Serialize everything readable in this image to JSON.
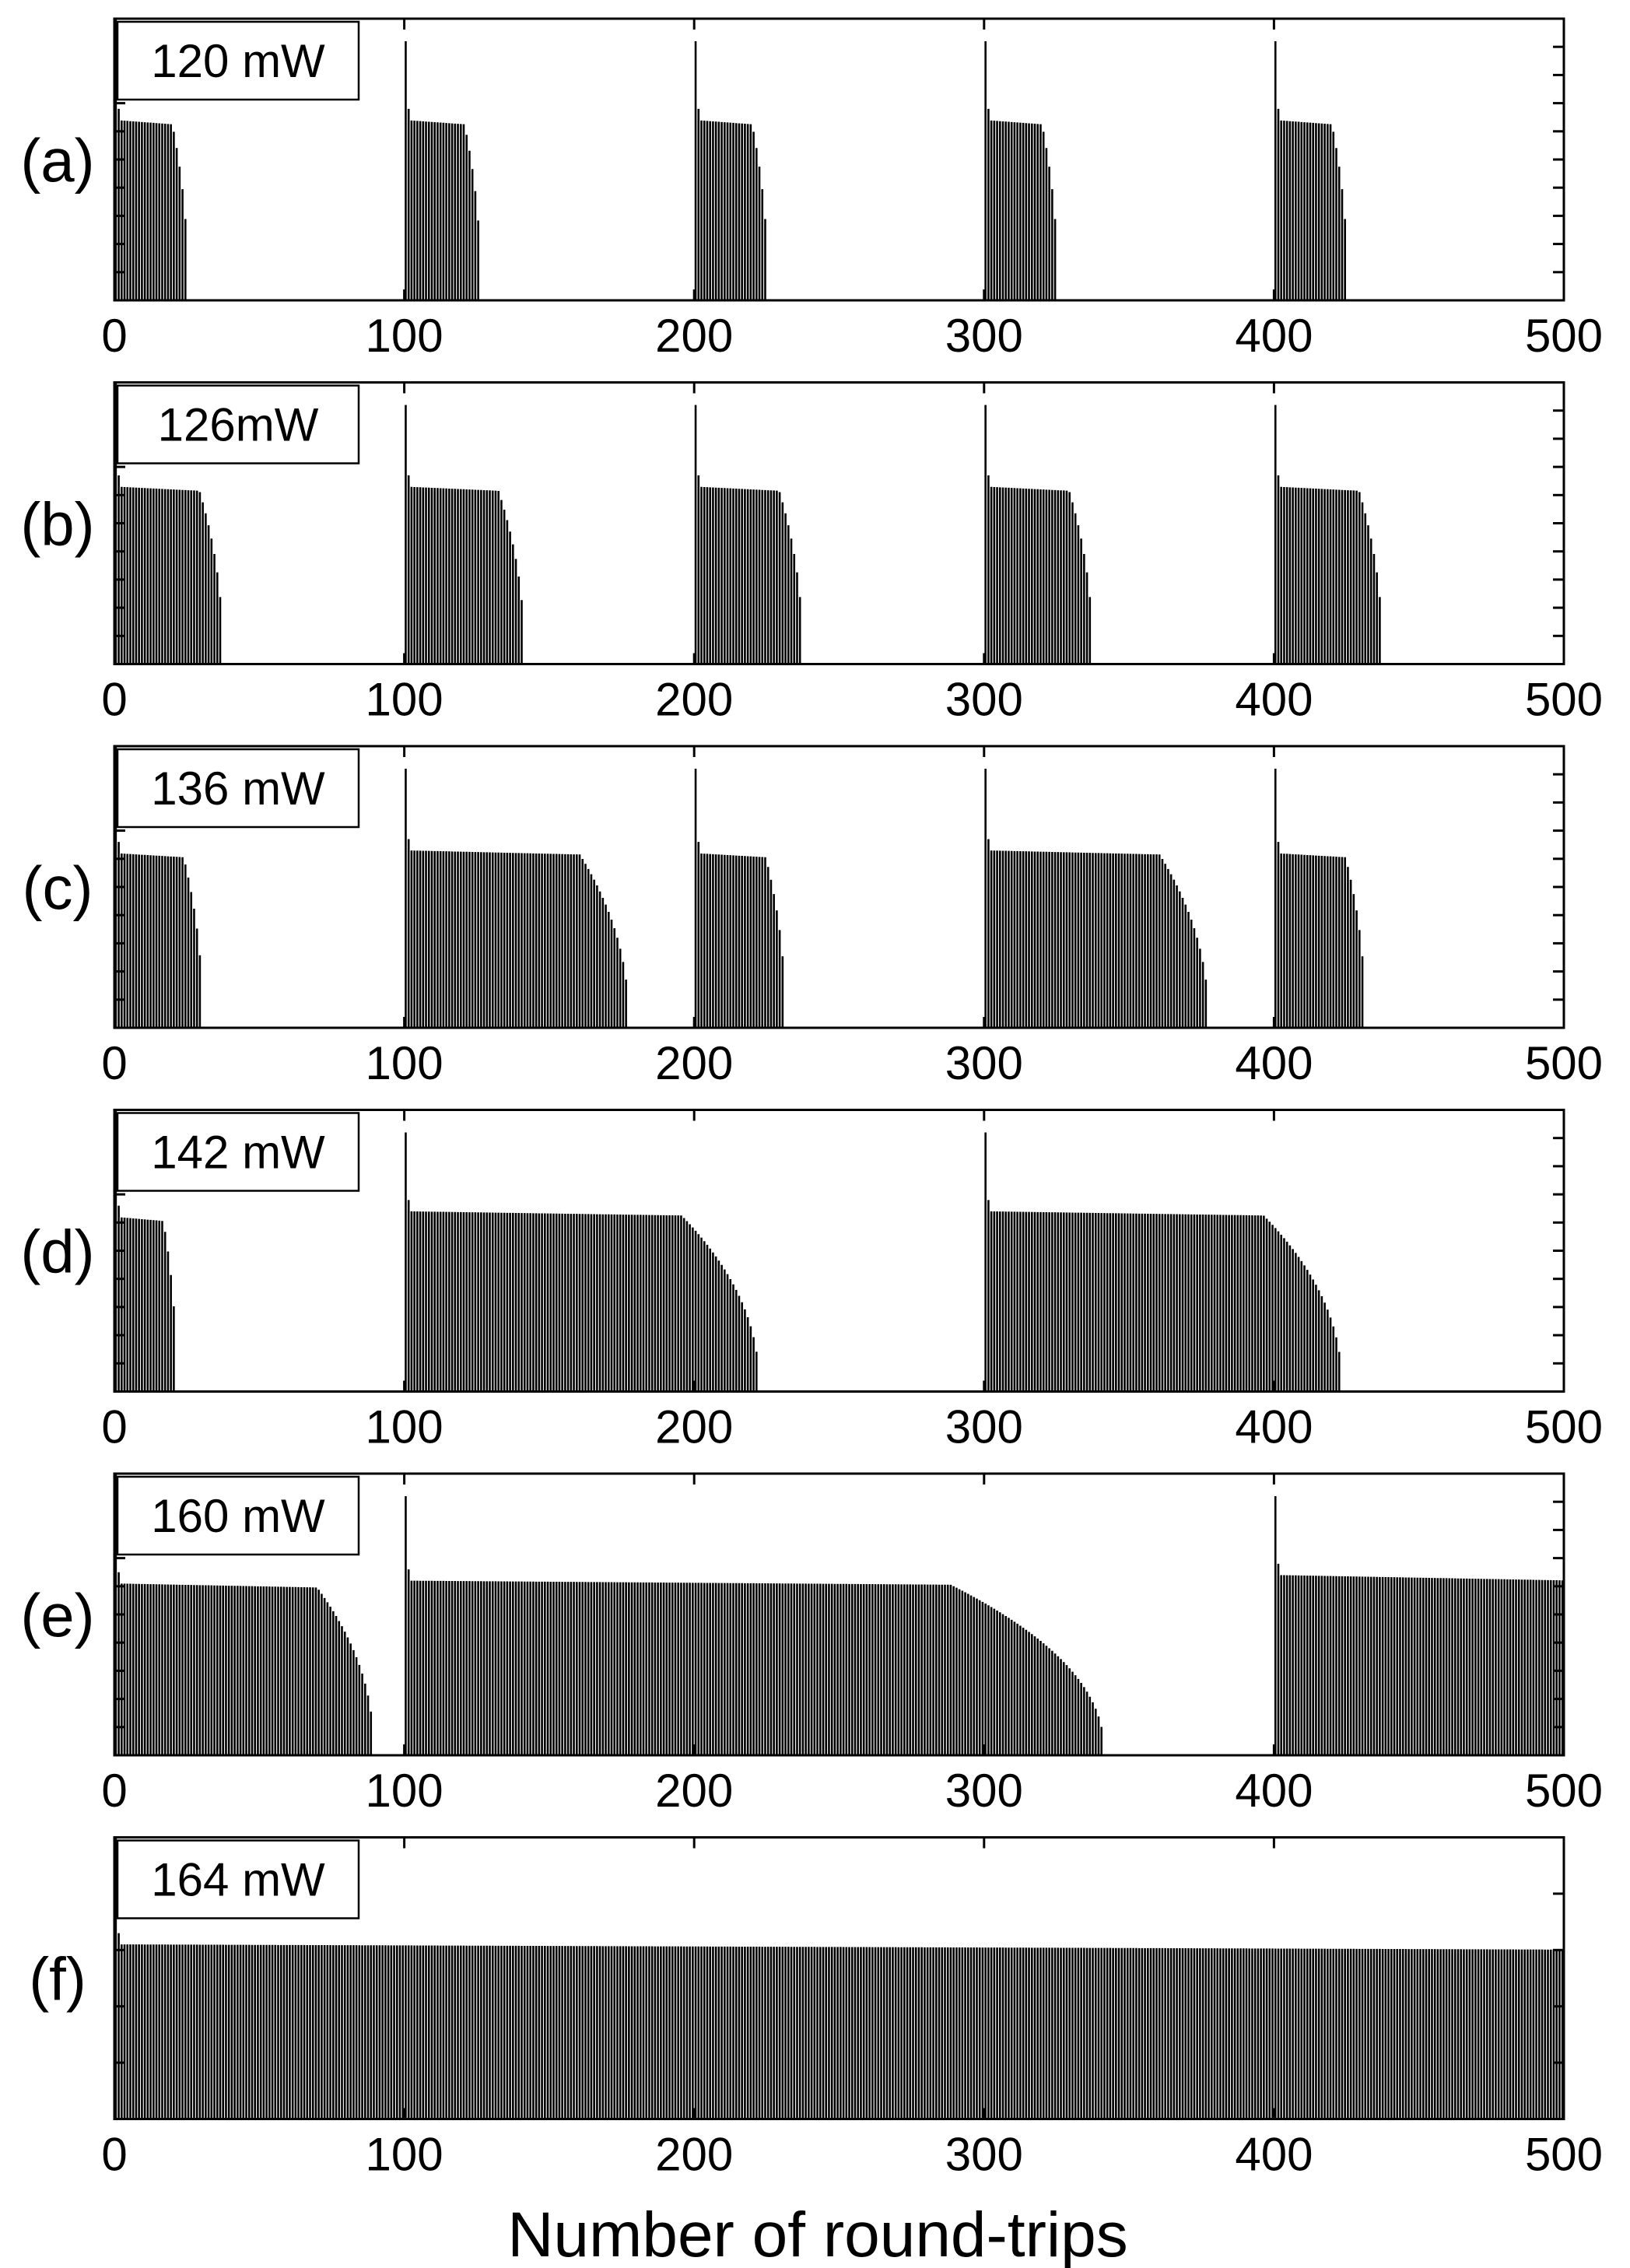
{
  "figure": {
    "xlabel": "Number of round-trips"
  },
  "chart_data": [
    {
      "type": "bar",
      "panel_label": "(a)",
      "annotation": "120 mW",
      "xlim": [
        0,
        500
      ],
      "ylim": [
        0,
        1
      ],
      "xticks": [
        0,
        100,
        200,
        300,
        400,
        500
      ],
      "y_minor_ticks": [
        0.1,
        0.2,
        0.3,
        0.4,
        0.5,
        0.6,
        0.7,
        0.8,
        0.9
      ],
      "bursts": [
        {
          "start": 0,
          "end": 25,
          "peak": 1.0,
          "plateau": 0.64
        },
        {
          "start": 100,
          "end": 126,
          "peak": 0.92,
          "plateau": 0.64
        },
        {
          "start": 200,
          "end": 225,
          "peak": 0.92,
          "plateau": 0.64
        },
        {
          "start": 300,
          "end": 325,
          "peak": 0.92,
          "plateau": 0.64
        },
        {
          "start": 400,
          "end": 425,
          "peak": 0.92,
          "plateau": 0.64
        }
      ]
    },
    {
      "type": "bar",
      "panel_label": "(b)",
      "annotation": "126mW",
      "xlim": [
        0,
        500
      ],
      "ylim": [
        0,
        1
      ],
      "xticks": [
        0,
        100,
        200,
        300,
        400,
        500
      ],
      "y_minor_ticks": [
        0.1,
        0.2,
        0.3,
        0.4,
        0.5,
        0.6,
        0.7,
        0.8,
        0.9
      ],
      "bursts": [
        {
          "start": 0,
          "end": 37,
          "peak": 1.0,
          "plateau": 0.63
        },
        {
          "start": 100,
          "end": 141,
          "peak": 0.92,
          "plateau": 0.63
        },
        {
          "start": 200,
          "end": 237,
          "peak": 0.92,
          "plateau": 0.63
        },
        {
          "start": 300,
          "end": 337,
          "peak": 0.92,
          "plateau": 0.63
        },
        {
          "start": 400,
          "end": 437,
          "peak": 0.92,
          "plateau": 0.63
        }
      ]
    },
    {
      "type": "bar",
      "panel_label": "(c)",
      "annotation": "136 mW",
      "xlim": [
        0,
        500
      ],
      "ylim": [
        0,
        1
      ],
      "xticks": [
        0,
        100,
        200,
        300,
        400,
        500
      ],
      "y_minor_ticks": [
        0.1,
        0.2,
        0.3,
        0.4,
        0.5,
        0.6,
        0.7,
        0.8,
        0.9
      ],
      "bursts": [
        {
          "start": 0,
          "end": 30,
          "peak": 1.0,
          "plateau": 0.62
        },
        {
          "start": 100,
          "end": 177,
          "peak": 0.92,
          "plateau": 0.63
        },
        {
          "start": 200,
          "end": 231,
          "peak": 0.92,
          "plateau": 0.62
        },
        {
          "start": 300,
          "end": 377,
          "peak": 0.92,
          "plateau": 0.63
        },
        {
          "start": 400,
          "end": 431,
          "peak": 0.92,
          "plateau": 0.62
        }
      ]
    },
    {
      "type": "bar",
      "panel_label": "(d)",
      "annotation": "142 mW",
      "xlim": [
        0,
        500
      ],
      "ylim": [
        0,
        1
      ],
      "xticks": [
        0,
        100,
        200,
        300,
        400,
        500
      ],
      "y_minor_ticks": [
        0.1,
        0.2,
        0.3,
        0.4,
        0.5,
        0.6,
        0.7,
        0.8,
        0.9
      ],
      "bursts": [
        {
          "start": 0,
          "end": 21,
          "peak": 1.0,
          "plateau": 0.62
        },
        {
          "start": 100,
          "end": 222,
          "peak": 0.92,
          "plateau": 0.64
        },
        {
          "start": 300,
          "end": 423,
          "peak": 0.92,
          "plateau": 0.64
        }
      ]
    },
    {
      "type": "bar",
      "panel_label": "(e)",
      "annotation": "160 mW",
      "xlim": [
        0,
        500
      ],
      "ylim": [
        0,
        1
      ],
      "xticks": [
        0,
        100,
        200,
        300,
        400,
        500
      ],
      "y_minor_ticks": [
        0.1,
        0.2,
        0.3,
        0.4,
        0.5,
        0.6,
        0.7,
        0.8,
        0.9
      ],
      "bursts": [
        {
          "start": 0,
          "end": 89,
          "peak": 1.0,
          "plateau": 0.61
        },
        {
          "start": 100,
          "end": 341,
          "peak": 0.92,
          "plateau": 0.62
        },
        {
          "start": 400,
          "end": 500,
          "peak": 0.92,
          "plateau": 0.64
        }
      ]
    },
    {
      "type": "bar",
      "panel_label": "(f)",
      "annotation": "164 mW",
      "xlim": [
        0,
        500
      ],
      "ylim": [
        0,
        1
      ],
      "xticks": [
        0,
        100,
        200,
        300,
        400,
        500
      ],
      "y_minor_ticks": [
        0.2,
        0.4,
        0.6,
        0.8
      ],
      "bursts": [
        {
          "start": 0,
          "end": 500,
          "peak": 1.0,
          "plateau": 0.62
        }
      ]
    }
  ]
}
